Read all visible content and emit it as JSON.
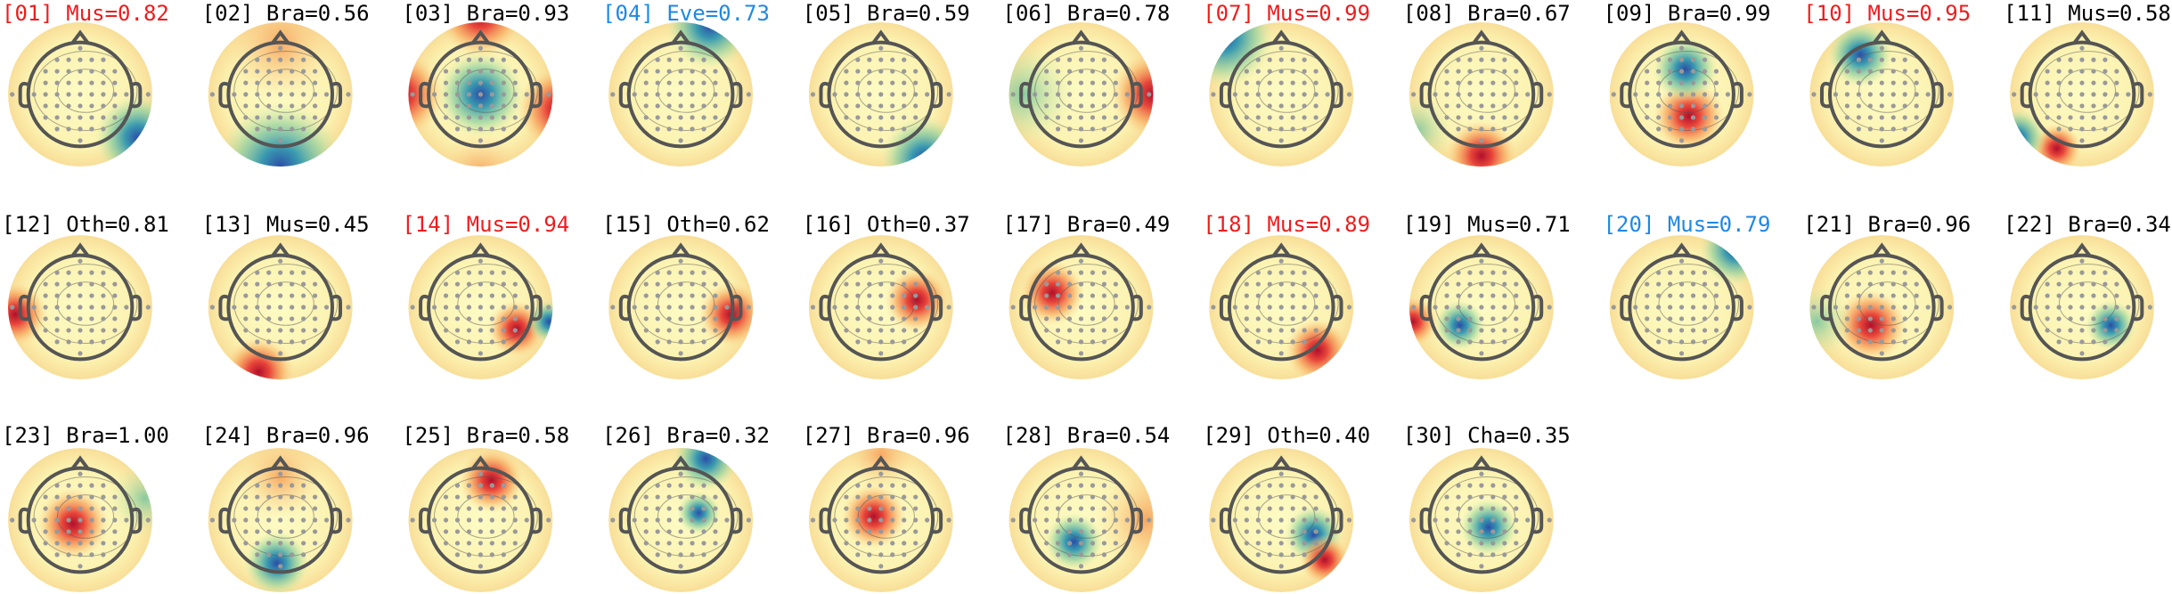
{
  "components": [
    {
      "label": "[01] Mus=0.82",
      "color": "#ee1c1c"
    },
    {
      "label": "[02] Bra=0.56",
      "color": "#000000"
    },
    {
      "label": "[03] Bra=0.93",
      "color": "#000000"
    },
    {
      "label": "[04] Eve=0.73",
      "color": "#1e88e5"
    },
    {
      "label": "[05] Bra=0.59",
      "color": "#000000"
    },
    {
      "label": "[06] Bra=0.78",
      "color": "#000000"
    },
    {
      "label": "[07] Mus=0.99",
      "color": "#ee1c1c"
    },
    {
      "label": "[08] Bra=0.67",
      "color": "#000000"
    },
    {
      "label": "[09] Bra=0.99",
      "color": "#000000"
    },
    {
      "label": "[10] Mus=0.95",
      "color": "#ee1c1c"
    },
    {
      "label": "[11] Mus=0.58",
      "color": "#000000"
    },
    {
      "label": "[12] Oth=0.81",
      "color": "#000000"
    },
    {
      "label": "[13] Mus=0.45",
      "color": "#000000"
    },
    {
      "label": "[14] Mus=0.94",
      "color": "#ee1c1c"
    },
    {
      "label": "[15] Oth=0.62",
      "color": "#000000"
    },
    {
      "label": "[16] Oth=0.37",
      "color": "#000000"
    },
    {
      "label": "[17] Bra=0.49",
      "color": "#000000"
    },
    {
      "label": "[18] Mus=0.89",
      "color": "#ee1c1c"
    },
    {
      "label": "[19] Mus=0.71",
      "color": "#000000"
    },
    {
      "label": "[20] Mus=0.79",
      "color": "#1e88e5"
    },
    {
      "label": "[21] Bra=0.96",
      "color": "#000000"
    },
    {
      "label": "[22] Bra=0.34",
      "color": "#000000"
    },
    {
      "label": "[23] Bra=1.00",
      "color": "#000000"
    },
    {
      "label": "[24] Bra=0.96",
      "color": "#000000"
    },
    {
      "label": "[25] Bra=0.58",
      "color": "#000000"
    },
    {
      "label": "[26] Bra=0.32",
      "color": "#000000"
    },
    {
      "label": "[27] Bra=0.96",
      "color": "#000000"
    },
    {
      "label": "[28] Bra=0.54",
      "color": "#000000"
    },
    {
      "label": "[29] Oth=0.40",
      "color": "#000000"
    },
    {
      "label": "[30] Cha=0.35",
      "color": "#000000"
    }
  ]
}
